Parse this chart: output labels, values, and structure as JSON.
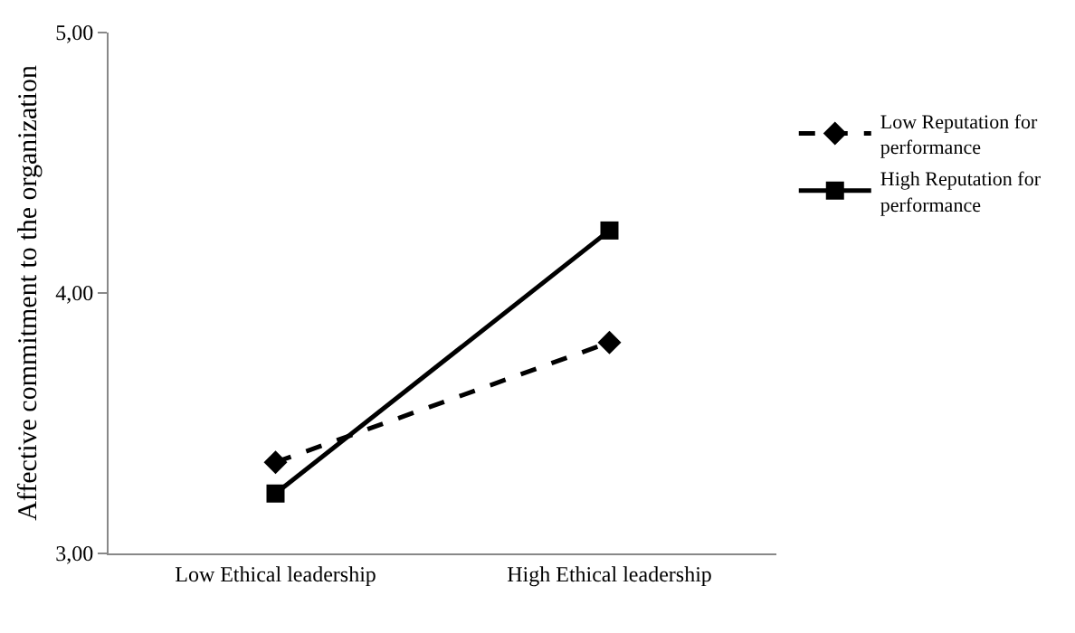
{
  "chart_data": {
    "type": "line",
    "ylabel": "Affective commitment to the organization",
    "categories": [
      "Low Ethical leadership",
      "High Ethical leadership"
    ],
    "series": [
      {
        "name": "Low Reputation for performance",
        "color": "#000000",
        "values": [
          3.35,
          3.81
        ],
        "marker": "diamond",
        "line_style": "dashed"
      },
      {
        "name": "High Reputation for performance",
        "color": "#000000",
        "values": [
          3.23,
          4.24
        ],
        "marker": "square",
        "line_style": "solid"
      }
    ],
    "ylim": [
      3,
      5
    ],
    "yticks": [
      {
        "value": 3,
        "label": "3,00"
      },
      {
        "value": 4,
        "label": "4,00"
      },
      {
        "value": 5,
        "label": "5,00"
      }
    ],
    "grid": false,
    "legend": "right"
  }
}
